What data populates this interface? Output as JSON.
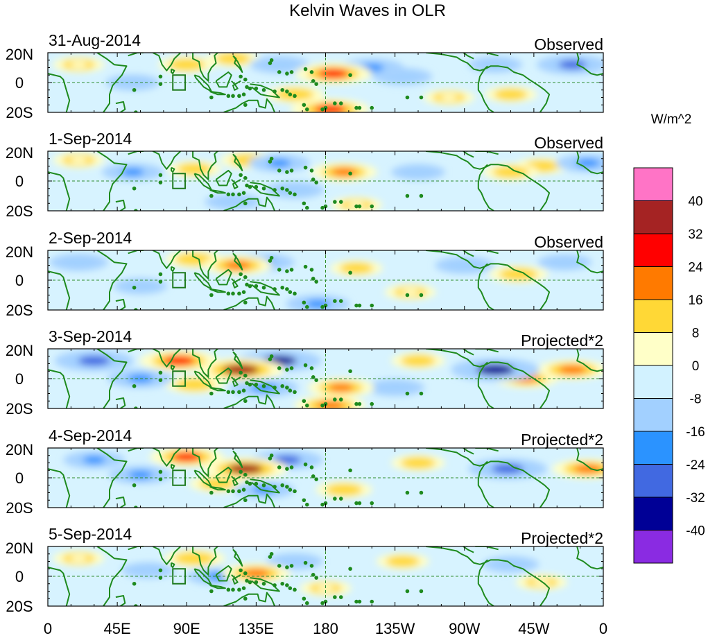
{
  "chart_data": {
    "type": "heatmap",
    "title": "Kelvin Waves in OLR",
    "xlabel": "",
    "ylabel": "",
    "x_ticks": [
      "0",
      "45E",
      "90E",
      "135E",
      "180",
      "135W",
      "90W",
      "45W",
      "0"
    ],
    "x_range_deg": [
      0,
      360
    ],
    "y_ticks": [
      "20N",
      "0",
      "20S"
    ],
    "y_range_deg": [
      -20,
      20
    ],
    "reference_lines": [
      {
        "orientation": "horizontal",
        "at_lat": 0,
        "style": "dashed",
        "color": "#2e8b2e"
      },
      {
        "orientation": "vertical",
        "at_lon": 180,
        "style": "dashed",
        "color": "#2e8b2e"
      }
    ],
    "marker_box": {
      "lon": [
        81,
        89
      ],
      "lat": [
        -5,
        5
      ],
      "color": "#1e7a1e"
    },
    "panels": [
      {
        "date": "31-Aug-2014",
        "label": "Observed",
        "anomalies": [
          {
            "lon": 185,
            "lat": 6,
            "value": 28
          },
          {
            "lon": 183,
            "lat": -18,
            "value": 30
          },
          {
            "lon": 90,
            "lat": 12,
            "value": 12
          },
          {
            "lon": 120,
            "lat": 16,
            "value": 10
          },
          {
            "lon": 160,
            "lat": -8,
            "value": 14
          },
          {
            "lon": 150,
            "lat": 12,
            "value": -14
          },
          {
            "lon": 210,
            "lat": 10,
            "value": -18
          },
          {
            "lon": 230,
            "lat": 4,
            "value": -14
          },
          {
            "lon": 340,
            "lat": 12,
            "value": -24
          },
          {
            "lon": 55,
            "lat": 0,
            "value": -10
          },
          {
            "lon": 260,
            "lat": -10,
            "value": 8
          },
          {
            "lon": 300,
            "lat": -8,
            "value": 9
          },
          {
            "lon": 20,
            "lat": 12,
            "value": 8
          },
          {
            "lon": 290,
            "lat": 12,
            "value": -10
          }
        ]
      },
      {
        "date": "1-Sep-2014",
        "label": "Observed",
        "anomalies": [
          {
            "lon": 192,
            "lat": 6,
            "value": 20
          },
          {
            "lon": 130,
            "lat": 14,
            "value": 12
          },
          {
            "lon": 95,
            "lat": 8,
            "value": 10
          },
          {
            "lon": 150,
            "lat": 12,
            "value": -16
          },
          {
            "lon": 160,
            "lat": -6,
            "value": -14
          },
          {
            "lon": 350,
            "lat": 12,
            "value": -18
          },
          {
            "lon": 300,
            "lat": 6,
            "value": 12
          },
          {
            "lon": 320,
            "lat": 10,
            "value": 10
          },
          {
            "lon": 55,
            "lat": 6,
            "value": -16
          },
          {
            "lon": 120,
            "lat": -14,
            "value": -12
          },
          {
            "lon": 200,
            "lat": -16,
            "value": 8
          },
          {
            "lon": 240,
            "lat": 6,
            "value": -10
          },
          {
            "lon": 20,
            "lat": 14,
            "value": 8
          }
        ]
      },
      {
        "date": "2-Sep-2014",
        "label": "Observed",
        "anomalies": [
          {
            "lon": 123,
            "lat": 10,
            "value": 22
          },
          {
            "lon": 95,
            "lat": 14,
            "value": 14
          },
          {
            "lon": 140,
            "lat": 12,
            "value": -16
          },
          {
            "lon": 175,
            "lat": -16,
            "value": -18
          },
          {
            "lon": 20,
            "lat": 12,
            "value": -14
          },
          {
            "lon": 305,
            "lat": 4,
            "value": 14
          },
          {
            "lon": 270,
            "lat": 10,
            "value": -14
          },
          {
            "lon": 200,
            "lat": 8,
            "value": 9
          },
          {
            "lon": 60,
            "lat": -4,
            "value": -10
          },
          {
            "lon": 235,
            "lat": -8,
            "value": 8
          },
          {
            "lon": 335,
            "lat": 12,
            "value": -10
          }
        ]
      },
      {
        "date": "3-Sep-2014",
        "label": "Projected*2",
        "anomalies": [
          {
            "lon": 125,
            "lat": 6,
            "value": 36
          },
          {
            "lon": 85,
            "lat": 12,
            "value": 30
          },
          {
            "lon": 150,
            "lat": 12,
            "value": -34
          },
          {
            "lon": 30,
            "lat": 12,
            "value": -30
          },
          {
            "lon": 60,
            "lat": 0,
            "value": -20
          },
          {
            "lon": 140,
            "lat": -6,
            "value": -22
          },
          {
            "lon": 190,
            "lat": -6,
            "value": 20
          },
          {
            "lon": 183,
            "lat": -18,
            "value": 24
          },
          {
            "lon": 290,
            "lat": 6,
            "value": -38
          },
          {
            "lon": 340,
            "lat": 6,
            "value": 24
          },
          {
            "lon": 310,
            "lat": 0,
            "value": 18
          },
          {
            "lon": 225,
            "lat": -6,
            "value": -14
          },
          {
            "lon": 95,
            "lat": -4,
            "value": 14
          },
          {
            "lon": 240,
            "lat": 12,
            "value": 10
          }
        ]
      },
      {
        "date": "4-Sep-2014",
        "label": "Projected*2",
        "anomalies": [
          {
            "lon": 128,
            "lat": 6,
            "value": 34
          },
          {
            "lon": 90,
            "lat": 14,
            "value": 26
          },
          {
            "lon": 155,
            "lat": 12,
            "value": -24
          },
          {
            "lon": 60,
            "lat": 2,
            "value": -18
          },
          {
            "lon": 140,
            "lat": -8,
            "value": -16
          },
          {
            "lon": 192,
            "lat": -8,
            "value": 12
          },
          {
            "lon": 298,
            "lat": 6,
            "value": -30
          },
          {
            "lon": 350,
            "lat": 6,
            "value": 24
          },
          {
            "lon": 30,
            "lat": 12,
            "value": -16
          },
          {
            "lon": 240,
            "lat": 10,
            "value": 10
          },
          {
            "lon": 110,
            "lat": -4,
            "value": 12
          }
        ]
      },
      {
        "date": "5-Sep-2014",
        "label": "Projected*2",
        "anomalies": [
          {
            "lon": 135,
            "lat": 2,
            "value": 22
          },
          {
            "lon": 95,
            "lat": 12,
            "value": 16
          },
          {
            "lon": 110,
            "lat": 0,
            "value": -16
          },
          {
            "lon": 160,
            "lat": 10,
            "value": -12
          },
          {
            "lon": 65,
            "lat": 4,
            "value": -10
          },
          {
            "lon": 180,
            "lat": -8,
            "value": 8
          },
          {
            "lon": 300,
            "lat": 8,
            "value": -12
          },
          {
            "lon": 320,
            "lat": -4,
            "value": 8
          },
          {
            "lon": 230,
            "lat": 10,
            "value": 9
          },
          {
            "lon": 20,
            "lat": 12,
            "value": 8
          }
        ]
      }
    ],
    "colorbar": {
      "title": "W/m^2",
      "tick_labels": [
        "40",
        "32",
        "24",
        "16",
        "8",
        "0",
        "-8",
        "-16",
        "-24",
        "-32",
        "-40"
      ],
      "levels": [
        48,
        40,
        32,
        24,
        16,
        8,
        0,
        -8,
        -16,
        -24,
        -32,
        -40,
        -48
      ],
      "colors": [
        "#ff74c6",
        "#a52323",
        "#ff0000",
        "#ff7a00",
        "#ffd836",
        "#ffffc8",
        "#d2f2ff",
        "#a2d0ff",
        "#2b93ff",
        "#4169e1",
        "#000096",
        "#8a2be2"
      ]
    }
  }
}
